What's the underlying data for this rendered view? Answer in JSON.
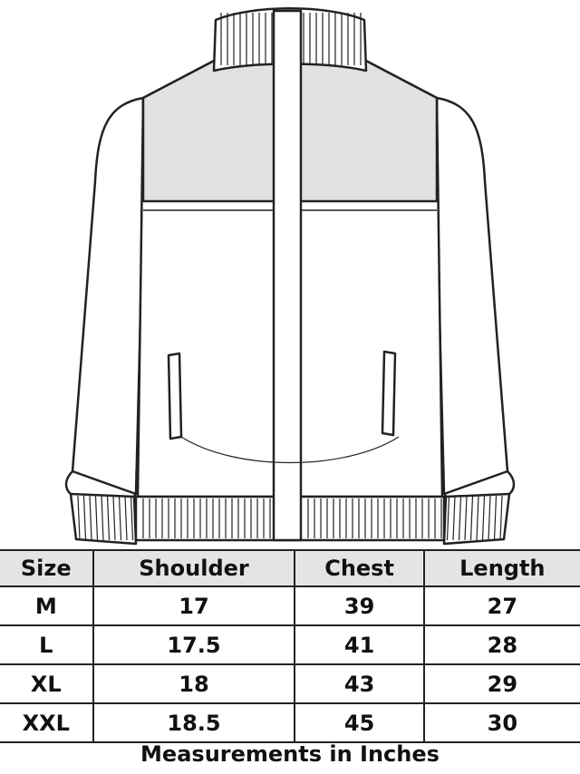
{
  "table": {
    "headers": [
      "Size",
      "Shoulder",
      "Chest",
      "Length"
    ],
    "rows": [
      [
        "M",
        "17",
        "39",
        "27"
      ],
      [
        "L",
        "17.5",
        "41",
        "28"
      ],
      [
        "XL",
        "18",
        "43",
        "29"
      ],
      [
        "XXL",
        "18.5",
        "45",
        "30"
      ]
    ]
  },
  "caption": "Measurements in Inches",
  "colors": {
    "header_bg": "#e4e4e4",
    "yoke_fill": "#e2e2e2",
    "line": "#222222"
  }
}
